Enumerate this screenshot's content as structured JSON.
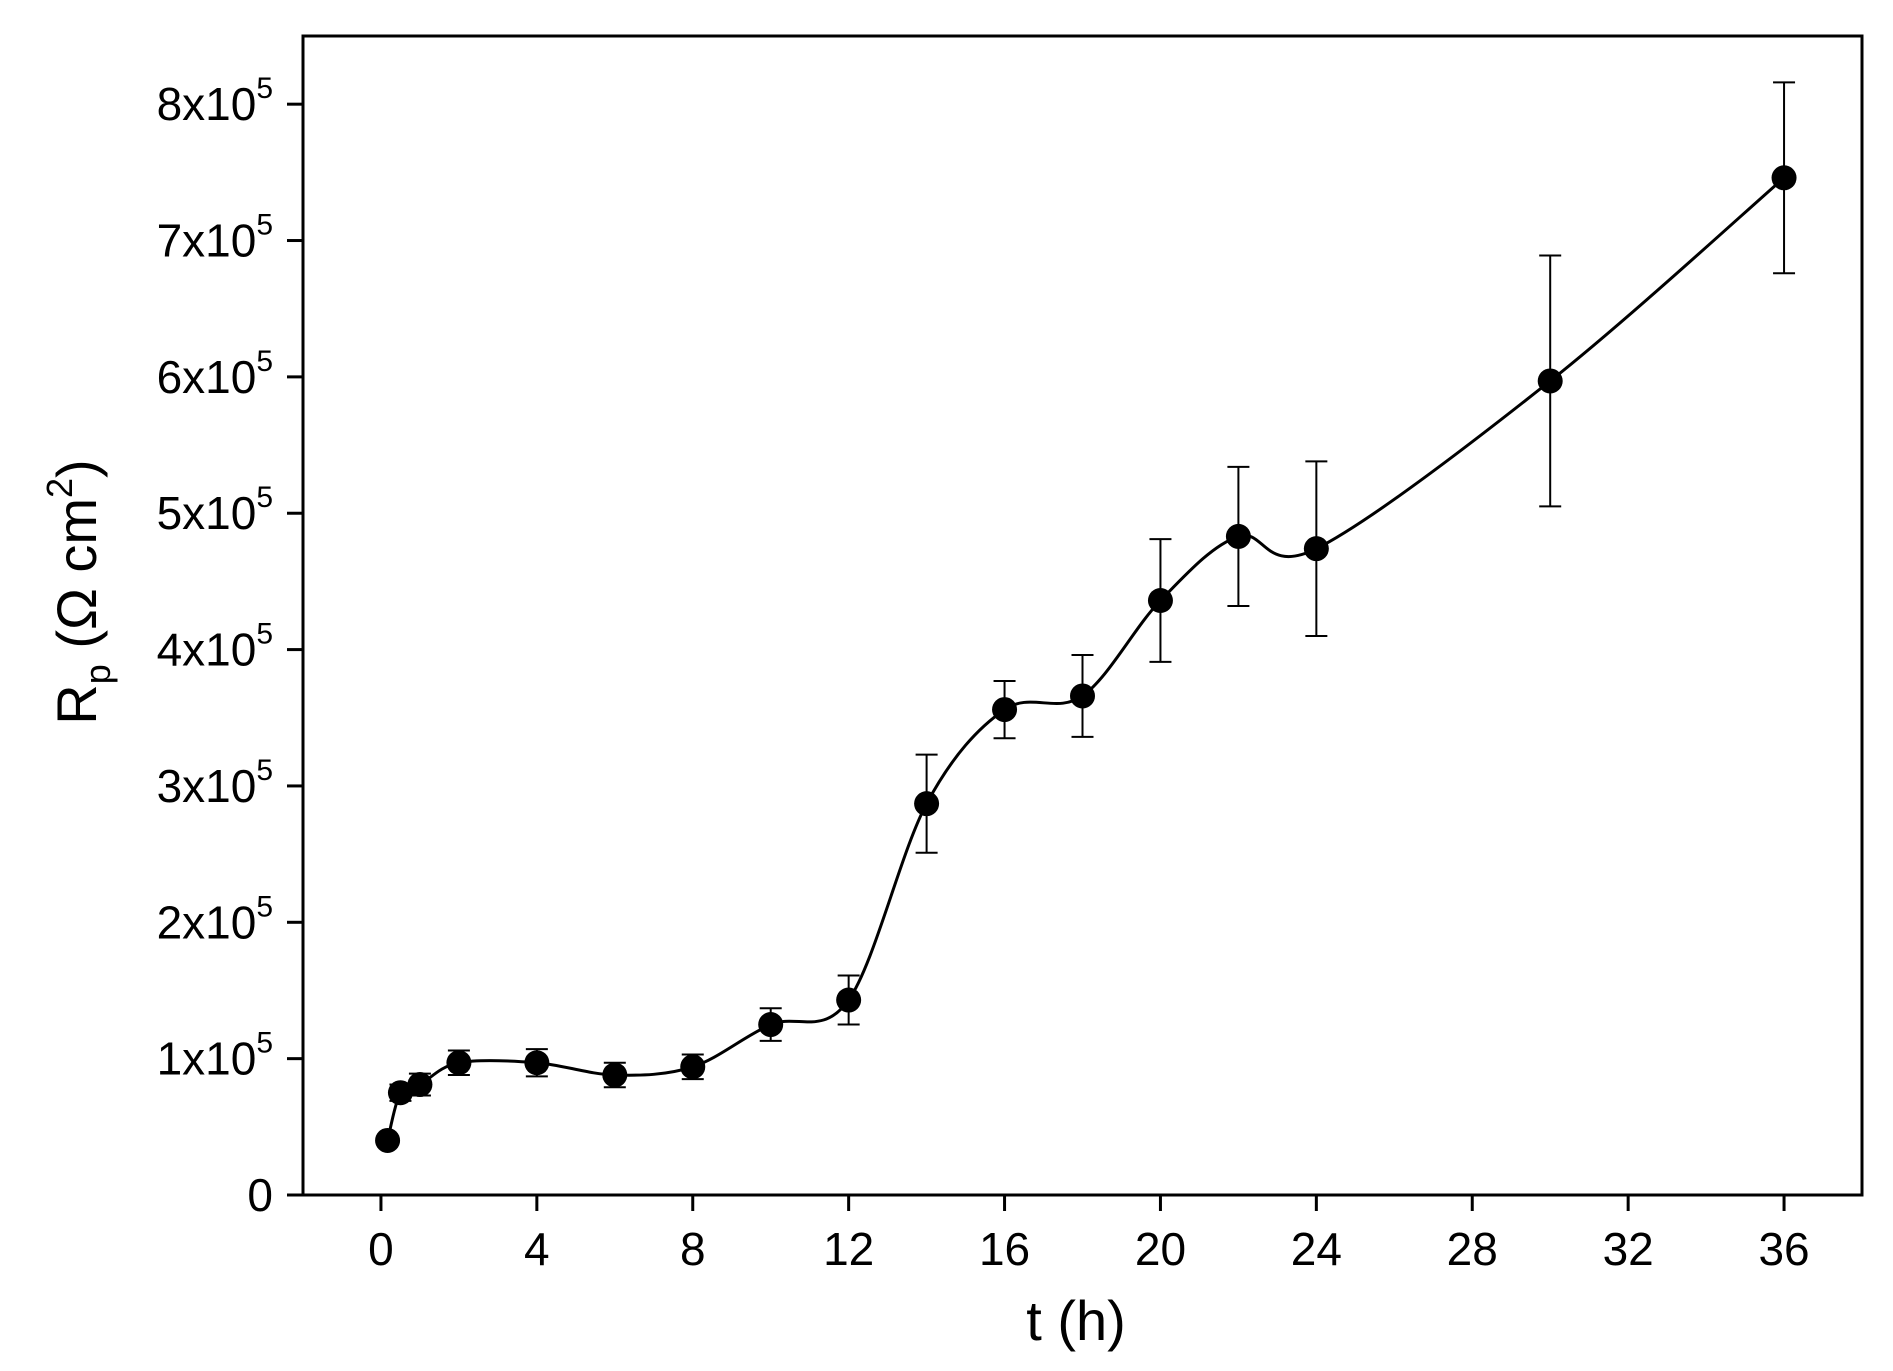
{
  "chart_data": {
    "type": "scatter",
    "xlabel": "t (h)",
    "ylabel": {
      "base": "R",
      "sub": "p",
      "unit_open": " (Ω cm",
      "unit_sup": "2",
      "unit_close": ")"
    },
    "xlim": [
      -2,
      38
    ],
    "ylim": [
      0,
      850000
    ],
    "x_ticks": [
      0,
      4,
      8,
      12,
      16,
      20,
      24,
      28,
      32,
      36
    ],
    "x_tick_labels": [
      "0",
      "4",
      "8",
      "12",
      "16",
      "20",
      "24",
      "28",
      "32",
      "36"
    ],
    "y_ticks": [
      0,
      100000,
      200000,
      300000,
      400000,
      500000,
      600000,
      700000,
      800000
    ],
    "y_tick_labels": [
      {
        "mantissa": "0",
        "exp": ""
      },
      {
        "mantissa": "1x10",
        "exp": "5"
      },
      {
        "mantissa": "2x10",
        "exp": "5"
      },
      {
        "mantissa": "3x10",
        "exp": "5"
      },
      {
        "mantissa": "4x10",
        "exp": "5"
      },
      {
        "mantissa": "5x10",
        "exp": "5"
      },
      {
        "mantissa": "6x10",
        "exp": "5"
      },
      {
        "mantissa": "7x10",
        "exp": "5"
      },
      {
        "mantissa": "8x10",
        "exp": "5"
      }
    ],
    "grid": false,
    "legend": "none",
    "series": [
      {
        "marker": "filled-circle",
        "line": "smooth",
        "color": "#000000",
        "points": [
          {
            "x": 0.17,
            "y": 40000,
            "err": 0
          },
          {
            "x": 0.5,
            "y": 75000,
            "err": 6000
          },
          {
            "x": 1,
            "y": 81000,
            "err": 8000
          },
          {
            "x": 2,
            "y": 97000,
            "err": 9000
          },
          {
            "x": 4,
            "y": 97000,
            "err": 10000
          },
          {
            "x": 6,
            "y": 88000,
            "err": 9000
          },
          {
            "x": 8,
            "y": 94000,
            "err": 9000
          },
          {
            "x": 10,
            "y": 125000,
            "err": 12000
          },
          {
            "x": 12,
            "y": 143000,
            "err": 18000
          },
          {
            "x": 14,
            "y": 287000,
            "err": 36000
          },
          {
            "x": 16,
            "y": 356000,
            "err": 21000
          },
          {
            "x": 18,
            "y": 366000,
            "err": 30000
          },
          {
            "x": 20,
            "y": 436000,
            "err": 45000
          },
          {
            "x": 22,
            "y": 483000,
            "err": 51000
          },
          {
            "x": 24,
            "y": 474000,
            "err": 64000
          },
          {
            "x": 30,
            "y": 597000,
            "err": 92000
          },
          {
            "x": 36,
            "y": 746000,
            "err": 70000
          }
        ]
      }
    ]
  }
}
